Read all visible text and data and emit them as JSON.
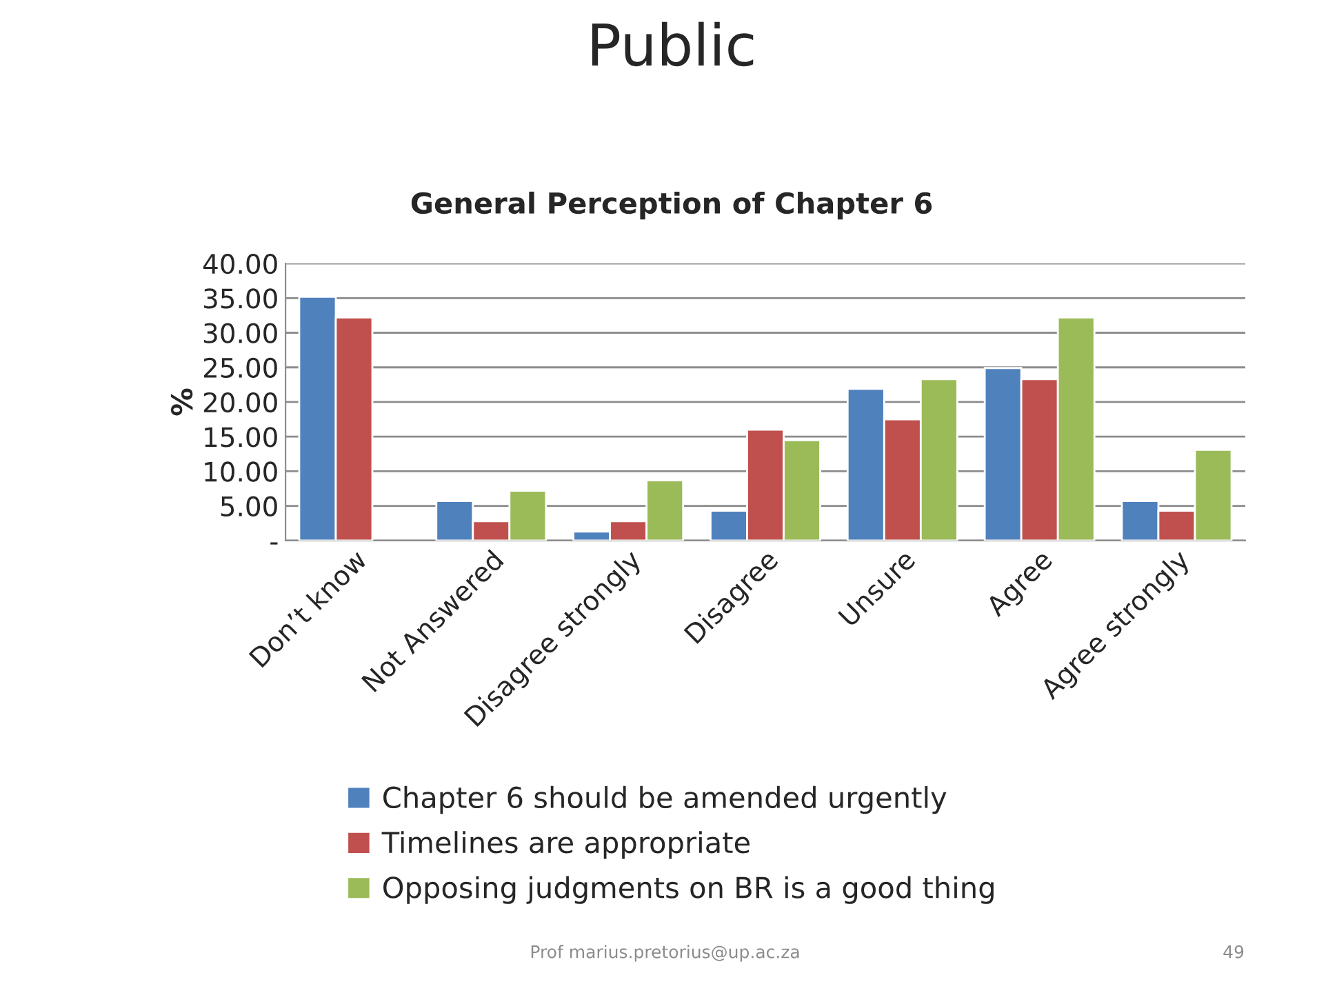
{
  "chart_data": {
    "type": "bar",
    "title": "Public",
    "subtitle": "General Perception of Chapter 6",
    "ylabel": "%",
    "categories": [
      "Don’t know",
      "Not Answered",
      "Disagree strongly",
      "Disagree",
      "Unsure",
      "Agree",
      "Agree strongly"
    ],
    "series": [
      {
        "name": "Chapter 6 should be amended urgently",
        "color": "#4f81bd",
        "values": [
          35.2,
          5.7,
          1.3,
          4.3,
          21.9,
          24.9,
          5.7
        ]
      },
      {
        "name": "Timelines are appropriate",
        "color": "#c0504d",
        "values": [
          32.2,
          2.8,
          2.8,
          16.0,
          17.5,
          23.3,
          4.3
        ]
      },
      {
        "name": "Opposing judgments on BR is a good thing",
        "color": "#9bbb59",
        "values": [
          null,
          7.2,
          8.7,
          14.5,
          23.3,
          32.2,
          13.1
        ]
      }
    ],
    "ylim": [
      0,
      40
    ],
    "yticks": [
      {
        "value": 0,
        "label": "-"
      },
      {
        "value": 5,
        "label": "5.00"
      },
      {
        "value": 10,
        "label": "10.00"
      },
      {
        "value": 15,
        "label": "15.00"
      },
      {
        "value": 20,
        "label": "20.00"
      },
      {
        "value": 25,
        "label": "25.00"
      },
      {
        "value": 30,
        "label": "30.00"
      },
      {
        "value": 35,
        "label": "35.00"
      },
      {
        "value": 40,
        "label": "40.00"
      }
    ],
    "grid": "y",
    "legend": "bottom",
    "annotations": [
      "Prof marius.pretorius@up.ac.za",
      "49"
    ]
  }
}
